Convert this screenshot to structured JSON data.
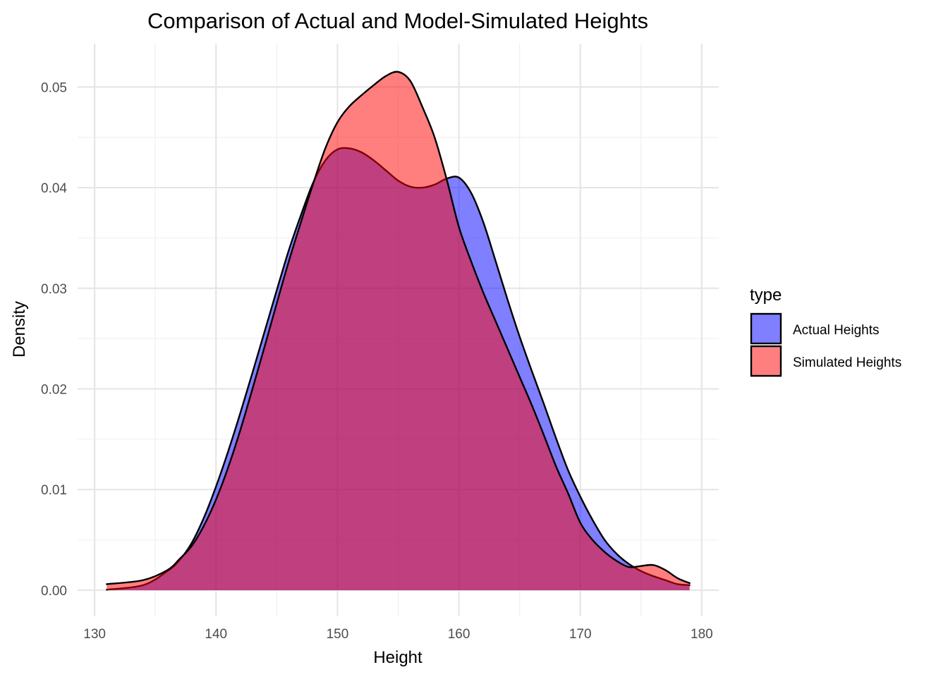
{
  "chart_data": {
    "type": "area",
    "title": "Comparison of Actual and Model-Simulated Heights",
    "xlabel": "Height",
    "ylabel": "Density",
    "xlim": [
      128.6,
      181.4
    ],
    "ylim": [
      -0.0026,
      0.0543
    ],
    "x_ticks": [
      130,
      140,
      150,
      160,
      170,
      180
    ],
    "y_ticks": [
      0.0,
      0.01,
      0.02,
      0.03,
      0.04,
      0.05
    ],
    "x_tick_labels": [
      "130",
      "140",
      "150",
      "160",
      "170",
      "180"
    ],
    "y_tick_labels": [
      "0.00",
      "0.01",
      "0.02",
      "0.03",
      "0.04",
      "0.05"
    ],
    "grid": true,
    "legend": {
      "title": "type",
      "position": "right"
    },
    "series": [
      {
        "name": "Actual Heights",
        "color": "#0000FF",
        "alpha": 0.5,
        "x": [
          131,
          134,
          136,
          137,
          138,
          139,
          140,
          141,
          142,
          143,
          144,
          145,
          146,
          147,
          148,
          149,
          150,
          151,
          152,
          153,
          154,
          155,
          156,
          157,
          158,
          159,
          160,
          161,
          162,
          163,
          164,
          165,
          166,
          167,
          168,
          169,
          170,
          171,
          172,
          173,
          174,
          175,
          176,
          177,
          178,
          179
        ],
        "values": [
          5e-05,
          0.0005,
          0.0019,
          0.003,
          0.0047,
          0.0072,
          0.0103,
          0.0138,
          0.0176,
          0.0216,
          0.0257,
          0.0298,
          0.0338,
          0.0373,
          0.0405,
          0.0427,
          0.0438,
          0.0439,
          0.0435,
          0.0427,
          0.0417,
          0.0407,
          0.0401,
          0.04,
          0.0403,
          0.0409,
          0.041,
          0.0395,
          0.0366,
          0.0328,
          0.0289,
          0.0252,
          0.0218,
          0.0185,
          0.0151,
          0.0119,
          0.0093,
          0.007,
          0.005,
          0.0036,
          0.0026,
          0.0019,
          0.0014,
          0.001,
          0.0006,
          0.0005
        ]
      },
      {
        "name": "Simulated Heights",
        "color": "#FF0000",
        "alpha": 0.5,
        "x": [
          131,
          134,
          136,
          137,
          138,
          139,
          140,
          141,
          142,
          143,
          144,
          145,
          146,
          147,
          148,
          149,
          150,
          151,
          152,
          153,
          154,
          155,
          156,
          157,
          158,
          159,
          160,
          161,
          162,
          163,
          164,
          165,
          166,
          167,
          168,
          169,
          170,
          171,
          172,
          173,
          174,
          175,
          176,
          177,
          178,
          179
        ],
        "values": [
          0.0006,
          0.001,
          0.002,
          0.0031,
          0.0044,
          0.0064,
          0.009,
          0.0122,
          0.0159,
          0.02,
          0.0242,
          0.0285,
          0.0327,
          0.0366,
          0.0404,
          0.0439,
          0.0465,
          0.0481,
          0.0492,
          0.0502,
          0.0511,
          0.0515,
          0.0506,
          0.048,
          0.045,
          0.0408,
          0.0361,
          0.0327,
          0.0296,
          0.0268,
          0.024,
          0.0212,
          0.0184,
          0.0154,
          0.0123,
          0.0096,
          0.0067,
          0.005,
          0.0038,
          0.0029,
          0.0023,
          0.0024,
          0.0025,
          0.002,
          0.0012,
          0.0007
        ]
      }
    ]
  }
}
